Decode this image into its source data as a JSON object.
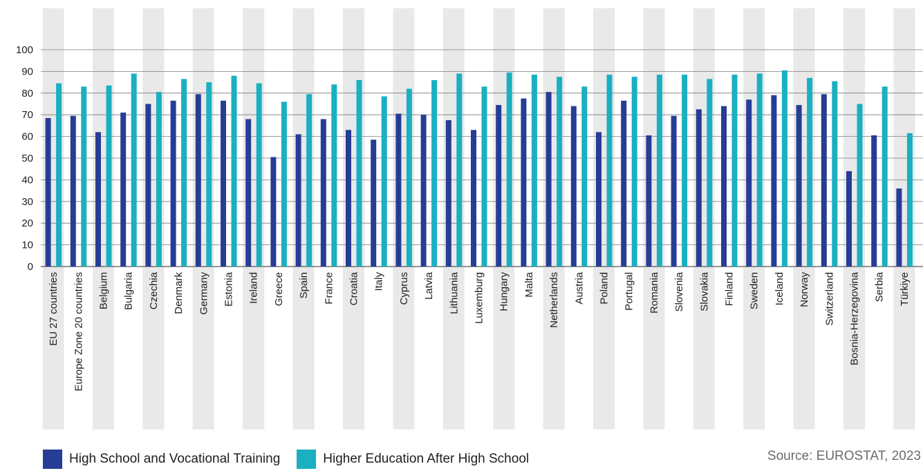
{
  "chart_data": {
    "type": "bar",
    "categories": [
      "EU 27 countries",
      "Europe Zone 20 countries",
      "Belgium",
      "Bulgaria",
      "Czechia",
      "Denmark",
      "Germany",
      "Estonia",
      "Ireland",
      "Greece",
      "Spain",
      "France",
      "Croatia",
      "Italy",
      "Cyprus",
      "Latvia",
      "Lithuania",
      "Luxemburg",
      "Hungary",
      "Malta",
      "Netherlands",
      "Austria",
      "Poland",
      "Portugal",
      "Romania",
      "Slovenia",
      "Slovakia",
      "Finland",
      "Sweden",
      "Iceland",
      "Norway",
      "Switzerland",
      "Bosnia-Herzegovina",
      "Serbia",
      "Türkiye"
    ],
    "series": [
      {
        "name": "High School and Vocational Training",
        "color": "#263d96",
        "values": [
          68.5,
          69.5,
          62,
          71,
          75,
          76.5,
          79.5,
          76.5,
          68,
          50.5,
          61,
          68,
          63,
          58.5,
          70.5,
          70,
          67.5,
          63,
          74.5,
          77.5,
          80.5,
          74,
          62,
          76.5,
          60.5,
          69.5,
          72.5,
          74,
          77,
          79,
          74.5,
          79.5,
          44,
          60.5,
          36
        ]
      },
      {
        "name": "Higher Education After High School",
        "color": "#1ab0c1",
        "values": [
          84.5,
          83,
          83.5,
          89,
          80.5,
          86.5,
          85,
          88,
          84.5,
          76,
          79.5,
          84,
          86,
          78.5,
          82,
          86,
          89,
          83,
          89.5,
          88.5,
          87.5,
          83,
          88.5,
          87.5,
          88.5,
          88.5,
          86.5,
          88.5,
          89,
          90.5,
          87,
          85.5,
          75,
          83,
          61.5
        ]
      }
    ],
    "yticks": [
      0,
      10,
      20,
      30,
      40,
      50,
      60,
      70,
      80,
      90,
      100
    ],
    "ylim": [
      0,
      110
    ],
    "grid": true,
    "legend_position": "bottom-left",
    "band_color": "#e9e9e9",
    "grid_color": "#7a7a7a"
  },
  "source": "Source: EUROSTAT, 2023"
}
